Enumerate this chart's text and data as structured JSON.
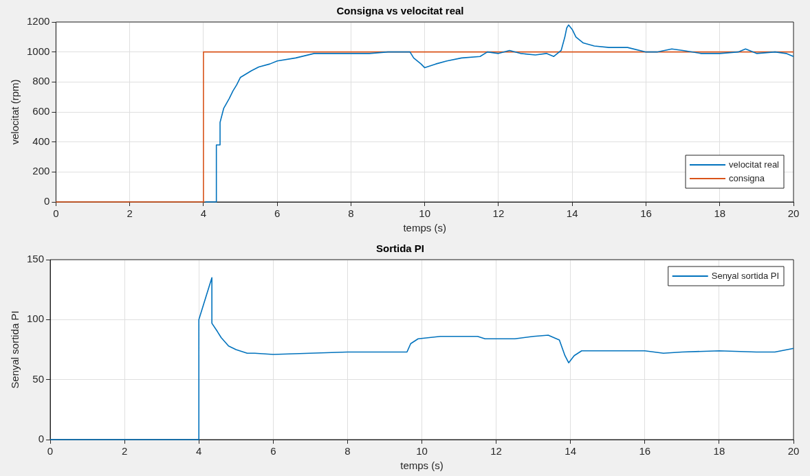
{
  "chart_data": [
    {
      "type": "line",
      "title": "Consigna vs velocitat real",
      "xlabel": "temps (s)",
      "ylabel": "velocitat (rpm)",
      "xlim": [
        0,
        20
      ],
      "xticks": [
        0,
        2,
        4,
        6,
        8,
        10,
        12,
        14,
        16,
        18,
        20
      ],
      "ylim": [
        0,
        1200
      ],
      "yticks": [
        0,
        200,
        400,
        600,
        800,
        1000,
        1200
      ],
      "grid": true,
      "legend": "bottom right",
      "marker": "none",
      "line_style": "solid",
      "series": [
        {
          "name": "velocitat real",
          "color": "#0072bd",
          "x": [
            4.05,
            4.35,
            4.35,
            4.45,
            4.45,
            4.55,
            4.7,
            4.8,
            4.9,
            5.0,
            5.3,
            5.5,
            5.8,
            6.0,
            6.5,
            7.0,
            7.5,
            8.0,
            8.5,
            9.0,
            9.2,
            9.6,
            9.7,
            9.9,
            10.0,
            10.3,
            10.6,
            11.0,
            11.5,
            11.7,
            12.0,
            12.3,
            12.6,
            13.0,
            13.3,
            13.5,
            13.7,
            13.8,
            13.85,
            13.9,
            14.0,
            14.1,
            14.3,
            14.6,
            15.0,
            15.5,
            16.0,
            16.3,
            16.7,
            17.0,
            17.5,
            18.0,
            18.5,
            18.7,
            19.0,
            19.5,
            19.8,
            20
          ],
          "values": [
            0,
            0,
            380,
            380,
            530,
            625,
            690,
            740,
            780,
            830,
            875,
            900,
            920,
            940,
            960,
            990,
            990,
            990,
            990,
            1000,
            1000,
            1000,
            960,
            920,
            895,
            920,
            940,
            960,
            970,
            1000,
            990,
            1010,
            990,
            980,
            990,
            970,
            1010,
            1100,
            1160,
            1180,
            1150,
            1100,
            1060,
            1040,
            1030,
            1030,
            1000,
            1000,
            1020,
            1010,
            990,
            990,
            1000,
            1020,
            990,
            1000,
            990,
            970
          ]
        },
        {
          "name": "consigna",
          "color": "#d95319",
          "x": [
            0,
            4,
            4,
            20
          ],
          "values": [
            0,
            0,
            1000,
            1000
          ]
        }
      ]
    },
    {
      "type": "line",
      "title": "Sortida PI",
      "xlabel": "temps (s)",
      "ylabel": "Senyal sortida PI",
      "xlim": [
        0,
        20
      ],
      "xticks": [
        0,
        2,
        4,
        6,
        8,
        10,
        12,
        14,
        16,
        18,
        20
      ],
      "ylim": [
        0,
        150
      ],
      "yticks": [
        0,
        50,
        100,
        150
      ],
      "grid": true,
      "legend": "top right",
      "marker": "none",
      "line_style": "solid",
      "series": [
        {
          "name": "Senyal sortida PI",
          "color": "#0072bd",
          "x": [
            0,
            4,
            4,
            4.35,
            4.35,
            4.5,
            4.6,
            4.8,
            5.0,
            5.3,
            5.5,
            6.0,
            7.0,
            8.0,
            9.0,
            9.6,
            9.7,
            9.9,
            10.5,
            11.5,
            11.7,
            12.5,
            13.0,
            13.4,
            13.7,
            13.85,
            13.95,
            14.1,
            14.3,
            15,
            16,
            16.5,
            17,
            18,
            19,
            19.5,
            20
          ],
          "values": [
            0,
            0,
            100,
            135,
            97,
            90,
            85,
            78,
            75,
            72,
            72,
            71,
            72,
            73,
            73,
            73,
            80,
            84,
            86,
            86,
            84,
            84,
            86,
            87,
            83,
            70,
            64,
            70,
            74,
            74,
            74,
            72,
            73,
            74,
            73,
            73,
            76
          ]
        }
      ]
    }
  ]
}
